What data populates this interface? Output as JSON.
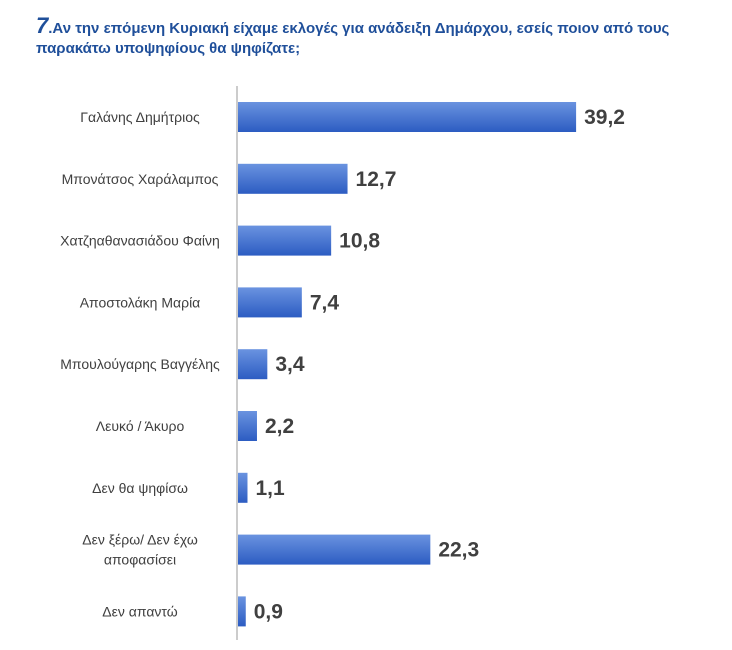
{
  "question": {
    "number": "7",
    "text": ".Αν την επόμενη Κυριακή είχαμε εκλογές για ανάδειξη Δημάρχου, εσείς ποιον από τους παρακάτω υποψηφίους θα ψηφίζατε;"
  },
  "colors": {
    "bar_top": "#6a93e0",
    "bar_bottom": "#2c5cc2",
    "axis": "#9a9a9a",
    "title": "#1f4f9a",
    "text": "#404040"
  },
  "chart_data": {
    "type": "bar",
    "orientation": "horizontal",
    "categories": [
      [
        "Γαλάνης Δημήτριος"
      ],
      [
        "Μπονάτσος Χαράλαμπος"
      ],
      [
        "Χατζηαθανασιάδου Φαίνη"
      ],
      [
        "Αποστολάκη Μαρία"
      ],
      [
        "Μπουλούγαρης Βαγγέλης"
      ],
      [
        "Λευκό / Άκυρο"
      ],
      [
        "Δεν θα ψηφίσω"
      ],
      [
        "Δεν ξέρω/ Δεν έχω",
        "αποφασίσει"
      ],
      [
        "Δεν απαντώ"
      ]
    ],
    "values": [
      39.2,
      12.7,
      10.8,
      7.4,
      3.4,
      2.2,
      1.1,
      22.3,
      0.9
    ],
    "value_labels": [
      "39,2",
      "12,7",
      "10,8",
      "7,4",
      "3,4",
      "2,2",
      "1,1",
      "22,3",
      "0,9"
    ],
    "xlim": [
      0,
      40
    ],
    "grid": false,
    "legend": "none"
  }
}
